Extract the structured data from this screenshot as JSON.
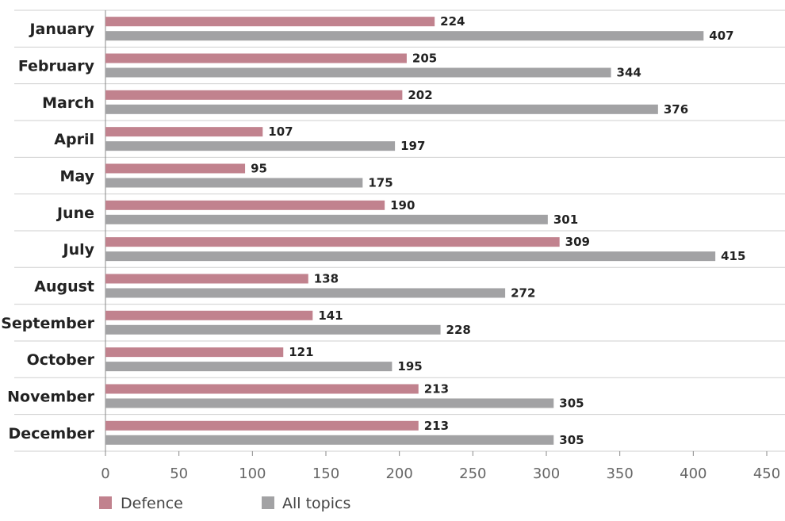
{
  "chart_data": {
    "type": "bar",
    "orientation": "horizontal",
    "categories": [
      "January",
      "February",
      "March",
      "April",
      "May",
      "June",
      "July",
      "August",
      "September",
      "October",
      "November",
      "December"
    ],
    "series": [
      {
        "name": "Defence",
        "color": "#c1828e",
        "values": [
          224,
          205,
          202,
          107,
          95,
          190,
          309,
          138,
          141,
          121,
          213,
          213
        ]
      },
      {
        "name": "All topics",
        "color": "#a2a2a4",
        "values": [
          407,
          344,
          376,
          197,
          175,
          301,
          415,
          272,
          228,
          195,
          305,
          305
        ]
      }
    ],
    "xlim": [
      0,
      450
    ],
    "xticks": [
      0,
      50,
      100,
      150,
      200,
      250,
      300,
      350,
      400,
      450
    ],
    "title": "",
    "xlabel": "",
    "ylabel": "",
    "grid": "horizontal separators between categories, no vertical grid",
    "data_labels": true,
    "legend": "bottom-left"
  }
}
